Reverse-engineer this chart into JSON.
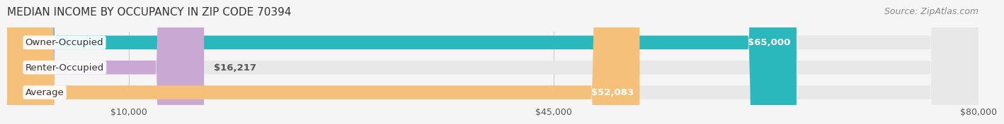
{
  "title": "MEDIAN INCOME BY OCCUPANCY IN ZIP CODE 70394",
  "source": "Source: ZipAtlas.com",
  "categories": [
    "Owner-Occupied",
    "Renter-Occupied",
    "Average"
  ],
  "values": [
    65000,
    16217,
    52083
  ],
  "bar_colors": [
    "#2ab8bc",
    "#c9a8d4",
    "#f5c07a"
  ],
  "value_labels": [
    "$65,000",
    "$16,217",
    "$52,083"
  ],
  "xlim": [
    0,
    80000
  ],
  "xticks": [
    10000,
    45000,
    80000
  ],
  "xtick_labels": [
    "$10,000",
    "$45,000",
    "$80,000"
  ],
  "bg_color": "#f5f5f5",
  "bar_bg_color": "#e8e8e8",
  "title_fontsize": 11,
  "source_fontsize": 9,
  "label_fontsize": 9.5,
  "tick_fontsize": 9
}
